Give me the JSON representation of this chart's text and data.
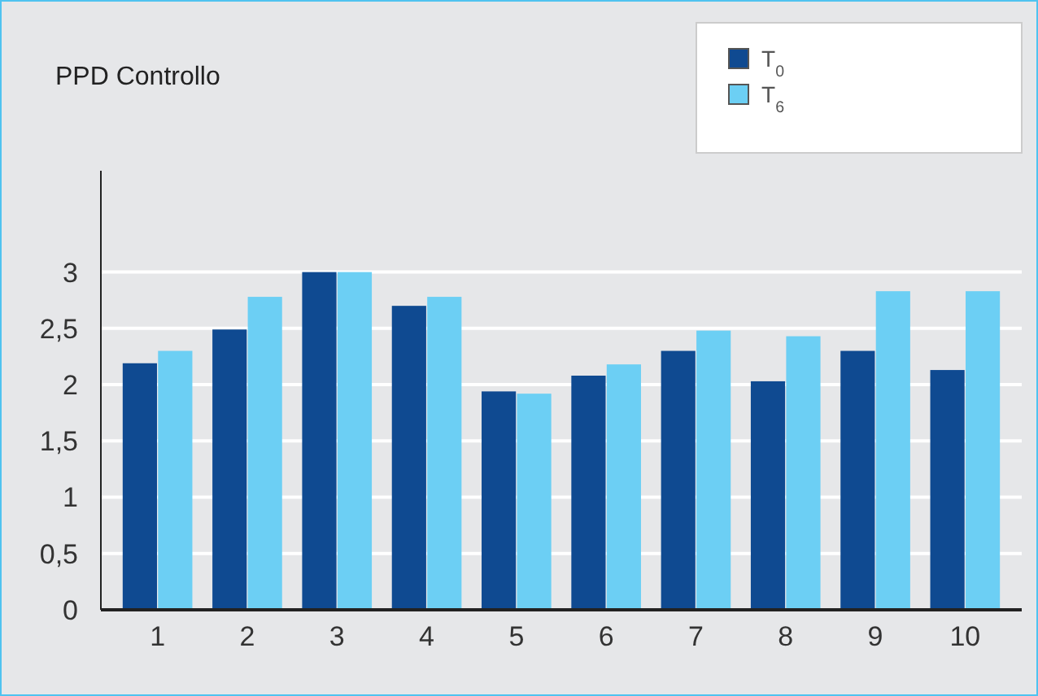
{
  "chart_data": {
    "type": "bar",
    "title": "PPD Controllo",
    "categories": [
      "1",
      "2",
      "3",
      "4",
      "5",
      "6",
      "7",
      "8",
      "9",
      "10"
    ],
    "series": [
      {
        "name": "T$_{0}$",
        "color": "#0f4a91",
        "values": [
          2.19,
          2.49,
          3.0,
          2.7,
          1.94,
          2.08,
          2.3,
          2.03,
          2.3,
          2.13
        ]
      },
      {
        "name": "T$_{6}$",
        "color": "#6ccff4",
        "values": [
          2.3,
          2.78,
          3.0,
          2.78,
          1.92,
          2.18,
          2.48,
          2.43,
          2.83,
          2.83
        ]
      }
    ],
    "ylim": [
      0,
      3.9
    ],
    "yticks": [
      {
        "value": 0,
        "label": "0"
      },
      {
        "value": 0.5,
        "label": "0,5"
      },
      {
        "value": 1,
        "label": "1"
      },
      {
        "value": 1.5,
        "label": "1,5"
      },
      {
        "value": 2,
        "label": "2"
      },
      {
        "value": 2.5,
        "label": "2,5"
      },
      {
        "value": 3,
        "label": "3"
      }
    ],
    "grid": "y",
    "legend": "top right"
  }
}
